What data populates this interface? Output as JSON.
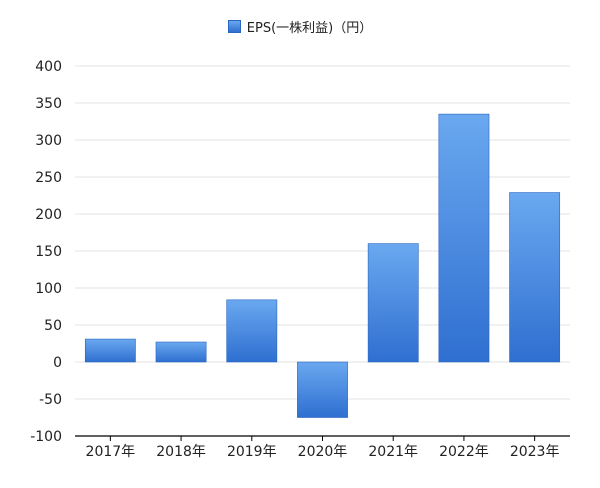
{
  "chart_data": {
    "type": "bar",
    "categories": [
      "2017年",
      "2018年",
      "2019年",
      "2020年",
      "2021年",
      "2022年",
      "2023年"
    ],
    "series": [
      {
        "name": "EPS(一株利益)（円）",
        "values": [
          31,
          27,
          84,
          -75,
          160,
          335,
          229
        ]
      }
    ],
    "ylim": [
      -100,
      400
    ],
    "yticks": [
      "400",
      "350",
      "300",
      "250",
      "200",
      "150",
      "100",
      "50",
      "0",
      "-50",
      "-100"
    ],
    "ytick_values": [
      400,
      350,
      300,
      250,
      200,
      150,
      100,
      50,
      0,
      -50,
      -100
    ],
    "grid": true,
    "legend_position": "top-center",
    "colors": {
      "bar_top": "#6aa8f0",
      "bar_bottom": "#2f6fd0",
      "bar_stroke": "#2a64c0",
      "grid": "#e3e3e3",
      "axis": "#000000",
      "text": "#222222"
    }
  }
}
